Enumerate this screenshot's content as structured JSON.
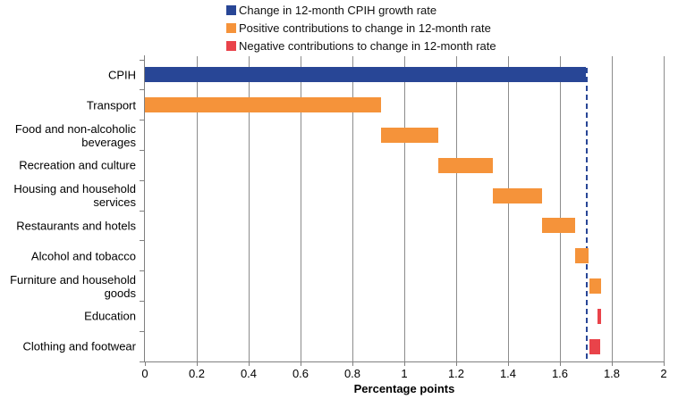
{
  "legend": [
    {
      "label": "Change in 12-month CPIH growth rate",
      "color": "#284696",
      "type": "total"
    },
    {
      "label": "Positive contributions to change in 12-month rate",
      "color": "#F5933A",
      "type": "positive"
    },
    {
      "label": "Negative contributions to change in 12-month rate",
      "color": "#E9434A",
      "type": "negative"
    }
  ],
  "colors": {
    "total": "#284696",
    "positive": "#F5933A",
    "negative": "#E9434A",
    "gridline": "#8C8C8C",
    "axis": "#808080",
    "reference_line": "#284696"
  },
  "chart_data": {
    "type": "bar",
    "orientation": "horizontal",
    "style": "waterfall",
    "title": "",
    "xlabel": "Percentage points",
    "ylabel": "",
    "xlim": [
      0,
      2
    ],
    "grid": true,
    "legend_position": "top",
    "xticks": [
      0,
      0.2,
      0.4,
      0.6,
      0.8,
      1,
      1.2,
      1.4,
      1.6,
      1.8,
      2
    ],
    "xtick_labels": [
      "0",
      "0.2",
      "0.4",
      "0.6",
      "0.8",
      "1",
      "1.2",
      "1.4",
      "1.6",
      "1.8",
      "2"
    ],
    "reference_line": {
      "value": 1.705,
      "style": "dashed"
    },
    "bars": [
      {
        "category": "CPIH",
        "start": 0,
        "end": 1.7,
        "value": 1.7,
        "type": "total"
      },
      {
        "category": "Transport",
        "start": 0,
        "end": 0.91,
        "value": 0.91,
        "type": "positive"
      },
      {
        "category": "Food and non-alcoholic beverages",
        "start": 0.91,
        "end": 1.13,
        "value": 0.22,
        "type": "positive"
      },
      {
        "category": "Recreation and culture",
        "start": 1.13,
        "end": 1.34,
        "value": 0.21,
        "type": "positive"
      },
      {
        "category": "Housing and household services",
        "start": 1.34,
        "end": 1.53,
        "value": 0.19,
        "type": "positive"
      },
      {
        "category": "Restaurants and hotels",
        "start": 1.53,
        "end": 1.66,
        "value": 0.13,
        "type": "positive"
      },
      {
        "category": "Alcohol and tobacco",
        "start": 1.66,
        "end": 1.71,
        "value": 0.05,
        "type": "positive"
      },
      {
        "category": "Furniture and household goods",
        "start": 1.715,
        "end": 1.76,
        "value": 0.05,
        "type": "positive"
      },
      {
        "category": "Education",
        "start": 1.745,
        "end": 1.76,
        "value": -0.01,
        "type": "negative"
      },
      {
        "category": "Clothing and footwear",
        "start": 1.715,
        "end": 1.755,
        "value": -0.04,
        "type": "negative"
      }
    ]
  }
}
